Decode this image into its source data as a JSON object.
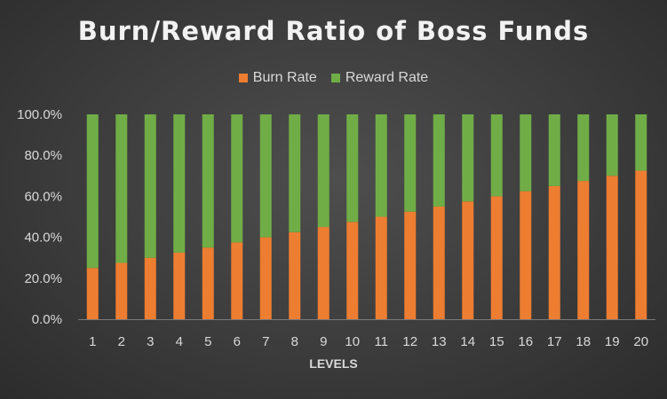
{
  "chart_data": {
    "type": "bar",
    "stacked": true,
    "percent_stacked": true,
    "title": "Burn/Reward Ratio of Boss Funds",
    "xlabel": "LEVELS",
    "ylabel": "",
    "ylim": [
      0,
      100
    ],
    "y_ticks": [
      "0.0%",
      "20.0%",
      "40.0%",
      "60.0%",
      "80.0%",
      "100.0%"
    ],
    "grid": false,
    "legend_position": "top",
    "categories": [
      "1",
      "2",
      "3",
      "4",
      "5",
      "6",
      "7",
      "8",
      "9",
      "10",
      "11",
      "12",
      "13",
      "14",
      "15",
      "16",
      "17",
      "18",
      "19",
      "20"
    ],
    "series": [
      {
        "name": "Burn Rate",
        "color": "#ed7d31",
        "values": [
          25,
          27.5,
          30,
          32.5,
          35,
          37.5,
          40,
          42.5,
          45,
          47.5,
          50,
          52.5,
          55,
          57.5,
          60,
          62.5,
          65,
          67.5,
          70,
          72.5
        ]
      },
      {
        "name": "Reward Rate",
        "color": "#70ad47",
        "values": [
          75,
          72.5,
          70,
          67.5,
          65,
          62.5,
          60,
          57.5,
          55,
          52.5,
          50,
          47.5,
          45,
          42.5,
          40,
          37.5,
          35,
          32.5,
          30,
          27.5
        ]
      }
    ]
  }
}
